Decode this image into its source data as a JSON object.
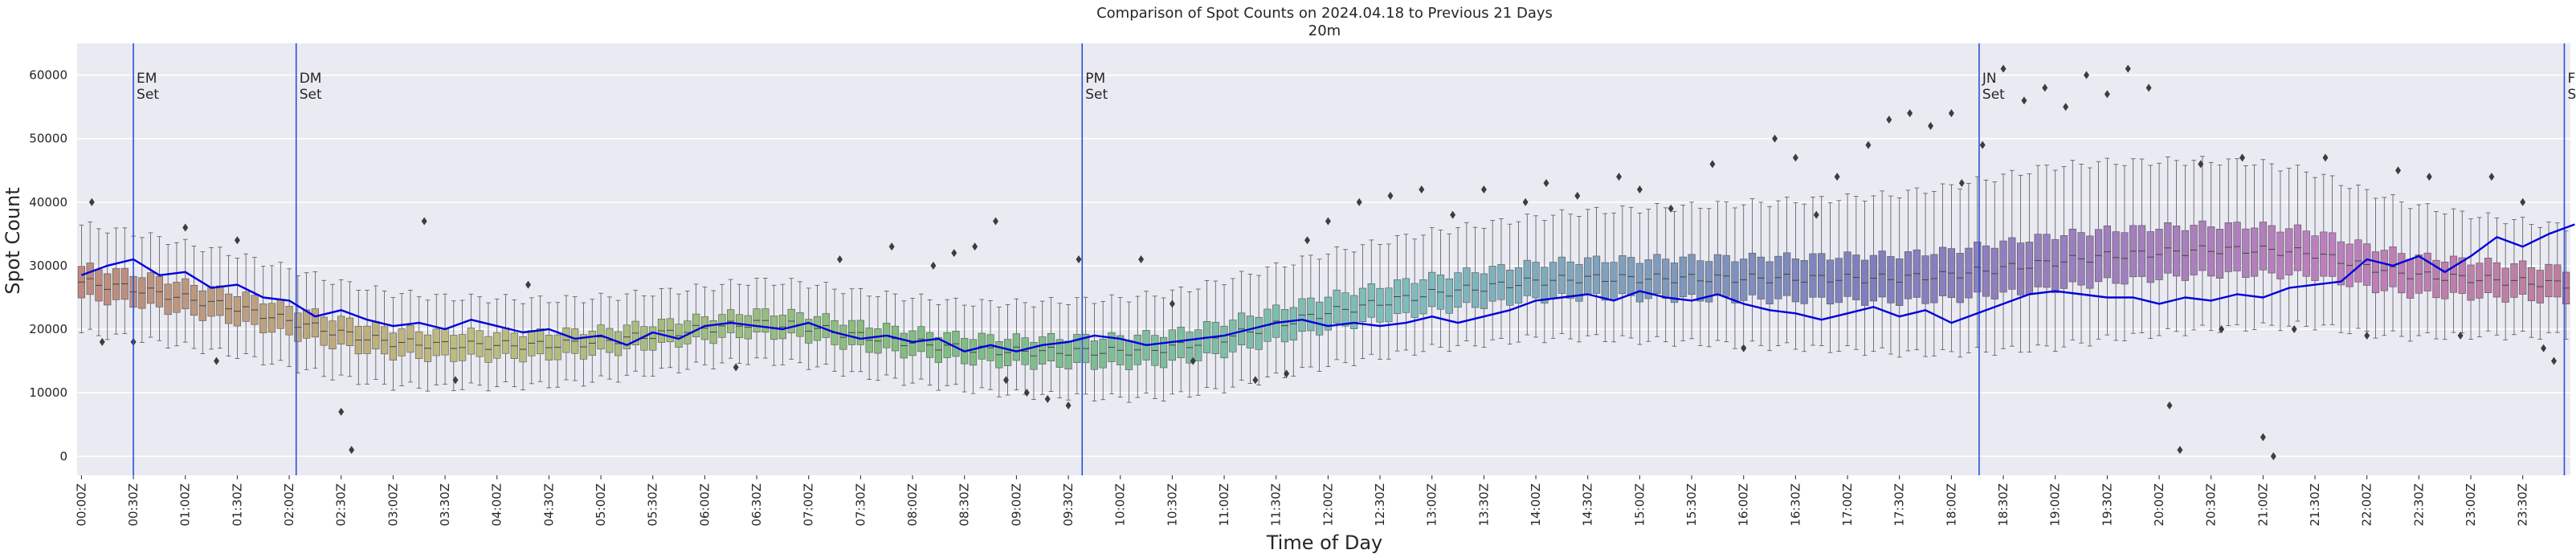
{
  "chart_data": {
    "type": "box",
    "title": "Comparison of Spot Counts on 2024.04.18 to Previous 21 Days",
    "subtitle": "20m",
    "xlabel": "Time of Day",
    "ylabel": "Spot Count",
    "ylim": [
      -3000,
      65000
    ],
    "yticks": [
      0,
      10000,
      20000,
      30000,
      40000,
      50000,
      60000
    ],
    "grid": true,
    "categories_per_tick": 6,
    "x_tick_labels": [
      "00:00Z",
      "00:30Z",
      "01:00Z",
      "01:30Z",
      "02:00Z",
      "02:30Z",
      "03:00Z",
      "03:30Z",
      "04:00Z",
      "04:30Z",
      "05:00Z",
      "05:30Z",
      "06:00Z",
      "06:30Z",
      "07:00Z",
      "07:30Z",
      "08:00Z",
      "08:30Z",
      "09:00Z",
      "09:30Z",
      "10:00Z",
      "10:30Z",
      "11:00Z",
      "11:30Z",
      "12:00Z",
      "12:30Z",
      "13:00Z",
      "13:30Z",
      "14:00Z",
      "14:30Z",
      "15:00Z",
      "15:30Z",
      "16:00Z",
      "16:30Z",
      "17:00Z",
      "17:30Z",
      "18:00Z",
      "18:30Z",
      "19:00Z",
      "19:30Z",
      "20:00Z",
      "20:30Z",
      "21:00Z",
      "21:30Z",
      "22:00Z",
      "22:30Z",
      "23:00Z",
      "23:30Z"
    ],
    "median_profile": [
      [
        0.0,
        27500
      ],
      [
        0.5,
        26500
      ],
      [
        1.0,
        25000
      ],
      [
        1.5,
        23500
      ],
      [
        2.0,
        21500
      ],
      [
        2.5,
        19500
      ],
      [
        3.0,
        18000
      ],
      [
        3.5,
        17500
      ],
      [
        4.0,
        17500
      ],
      [
        4.5,
        17500
      ],
      [
        5.0,
        18000
      ],
      [
        5.5,
        19000
      ],
      [
        6.0,
        20000
      ],
      [
        6.5,
        21000
      ],
      [
        7.0,
        20500
      ],
      [
        7.5,
        19000
      ],
      [
        8.0,
        18000
      ],
      [
        8.5,
        17000
      ],
      [
        9.0,
        16500
      ],
      [
        9.5,
        16500
      ],
      [
        10.0,
        16500
      ],
      [
        10.5,
        17000
      ],
      [
        11.0,
        18500
      ],
      [
        11.5,
        20500
      ],
      [
        12.0,
        22500
      ],
      [
        12.5,
        24000
      ],
      [
        13.0,
        25500
      ],
      [
        13.5,
        26500
      ],
      [
        14.0,
        27500
      ],
      [
        14.5,
        28000
      ],
      [
        15.0,
        28000
      ],
      [
        15.5,
        28000
      ],
      [
        16.0,
        28000
      ],
      [
        16.5,
        28000
      ],
      [
        17.0,
        28000
      ],
      [
        17.5,
        28000
      ],
      [
        18.0,
        28500
      ],
      [
        18.5,
        29500
      ],
      [
        19.0,
        30500
      ],
      [
        19.5,
        31500
      ],
      [
        20.0,
        32000
      ],
      [
        20.5,
        32500
      ],
      [
        21.0,
        32500
      ],
      [
        21.5,
        32000
      ],
      [
        22.0,
        30000
      ],
      [
        22.5,
        28500
      ],
      [
        23.0,
        28000
      ],
      [
        23.5,
        27500
      ],
      [
        24.0,
        27000
      ]
    ],
    "iqr_half_profile": [
      [
        0,
        2500
      ],
      [
        6,
        1800
      ],
      [
        8.5,
        2000
      ],
      [
        11,
        2500
      ],
      [
        14,
        2800
      ],
      [
        17,
        3500
      ],
      [
        19,
        4200
      ],
      [
        21,
        3800
      ],
      [
        23,
        2800
      ],
      [
        24,
        2500
      ]
    ],
    "series": [
      {
        "name": "2024.04.18",
        "color": "#0000dd",
        "points": [
          [
            0.0,
            28500
          ],
          [
            0.25,
            30000
          ],
          [
            0.5,
            31000
          ],
          [
            0.75,
            28500
          ],
          [
            1.0,
            29000
          ],
          [
            1.25,
            26500
          ],
          [
            1.5,
            27000
          ],
          [
            1.75,
            25000
          ],
          [
            2.0,
            24500
          ],
          [
            2.25,
            22000
          ],
          [
            2.5,
            23000
          ],
          [
            2.75,
            21500
          ],
          [
            3.0,
            20500
          ],
          [
            3.25,
            21000
          ],
          [
            3.5,
            20000
          ],
          [
            3.75,
            21500
          ],
          [
            4.0,
            20500
          ],
          [
            4.25,
            19500
          ],
          [
            4.5,
            20000
          ],
          [
            4.75,
            18500
          ],
          [
            5.0,
            19000
          ],
          [
            5.25,
            17500
          ],
          [
            5.5,
            19500
          ],
          [
            5.75,
            18500
          ],
          [
            6.0,
            20500
          ],
          [
            6.25,
            21000
          ],
          [
            6.5,
            20500
          ],
          [
            6.75,
            20000
          ],
          [
            7.0,
            21000
          ],
          [
            7.25,
            19500
          ],
          [
            7.5,
            18500
          ],
          [
            7.75,
            19000
          ],
          [
            8.0,
            18000
          ],
          [
            8.25,
            18500
          ],
          [
            8.5,
            16500
          ],
          [
            8.75,
            17500
          ],
          [
            9.0,
            16500
          ],
          [
            9.25,
            17500
          ],
          [
            9.5,
            18000
          ],
          [
            9.75,
            19000
          ],
          [
            10.0,
            18500
          ],
          [
            10.25,
            17500
          ],
          [
            10.5,
            18000
          ],
          [
            10.75,
            18500
          ],
          [
            11.0,
            19000
          ],
          [
            11.25,
            20000
          ],
          [
            11.5,
            21000
          ],
          [
            11.75,
            21500
          ],
          [
            12.0,
            20500
          ],
          [
            12.25,
            21000
          ],
          [
            12.5,
            20500
          ],
          [
            12.75,
            21000
          ],
          [
            13.0,
            22000
          ],
          [
            13.25,
            21000
          ],
          [
            13.5,
            22000
          ],
          [
            13.75,
            23000
          ],
          [
            14.0,
            24500
          ],
          [
            14.25,
            25000
          ],
          [
            14.5,
            25500
          ],
          [
            14.75,
            24500
          ],
          [
            15.0,
            26000
          ],
          [
            15.25,
            25000
          ],
          [
            15.5,
            24500
          ],
          [
            15.75,
            25500
          ],
          [
            16.0,
            24000
          ],
          [
            16.25,
            23000
          ],
          [
            16.5,
            22500
          ],
          [
            16.75,
            21500
          ],
          [
            17.0,
            22500
          ],
          [
            17.25,
            23500
          ],
          [
            17.5,
            22000
          ],
          [
            17.75,
            23000
          ],
          [
            18.0,
            21000
          ],
          [
            18.25,
            22500
          ],
          [
            18.5,
            24000
          ],
          [
            18.75,
            25500
          ],
          [
            19.0,
            26000
          ],
          [
            19.25,
            25500
          ],
          [
            19.5,
            25000
          ],
          [
            19.75,
            25000
          ],
          [
            20.0,
            24000
          ],
          [
            20.25,
            25000
          ],
          [
            20.5,
            24500
          ],
          [
            20.75,
            25500
          ],
          [
            21.0,
            25000
          ],
          [
            21.25,
            26500
          ],
          [
            21.5,
            27000
          ],
          [
            21.75,
            27500
          ],
          [
            22.0,
            31000
          ],
          [
            22.25,
            30000
          ],
          [
            22.5,
            31500
          ],
          [
            22.75,
            29000
          ],
          [
            23.0,
            31500
          ],
          [
            23.25,
            34500
          ],
          [
            23.5,
            33000
          ],
          [
            23.75,
            35000
          ],
          [
            24.0,
            36500
          ]
        ]
      }
    ],
    "outliers": [
      [
        0.1,
        40000
      ],
      [
        0.2,
        18000
      ],
      [
        0.5,
        18000
      ],
      [
        1.0,
        36000
      ],
      [
        1.3,
        15000
      ],
      [
        1.5,
        34000
      ],
      [
        2.6,
        1000
      ],
      [
        2.5,
        7000
      ],
      [
        3.3,
        37000
      ],
      [
        3.6,
        12000
      ],
      [
        4.3,
        27000
      ],
      [
        6.3,
        14000
      ],
      [
        7.3,
        31000
      ],
      [
        7.8,
        33000
      ],
      [
        8.2,
        30000
      ],
      [
        8.4,
        32000
      ],
      [
        8.6,
        33000
      ],
      [
        8.8,
        37000
      ],
      [
        8.9,
        12000
      ],
      [
        9.1,
        10000
      ],
      [
        9.3,
        9000
      ],
      [
        9.5,
        8000
      ],
      [
        9.6,
        31000
      ],
      [
        10.2,
        31000
      ],
      [
        10.5,
        24000
      ],
      [
        10.7,
        15000
      ],
      [
        11.3,
        12000
      ],
      [
        11.6,
        13000
      ],
      [
        11.8,
        34000
      ],
      [
        12.0,
        37000
      ],
      [
        12.3,
        40000
      ],
      [
        12.6,
        41000
      ],
      [
        12.9,
        42000
      ],
      [
        13.2,
        38000
      ],
      [
        13.5,
        42000
      ],
      [
        13.9,
        40000
      ],
      [
        14.1,
        43000
      ],
      [
        14.4,
        41000
      ],
      [
        14.8,
        44000
      ],
      [
        15.0,
        42000
      ],
      [
        15.3,
        39000
      ],
      [
        15.7,
        46000
      ],
      [
        16.0,
        17000
      ],
      [
        16.3,
        50000
      ],
      [
        16.5,
        47000
      ],
      [
        16.7,
        38000
      ],
      [
        16.9,
        44000
      ],
      [
        17.2,
        49000
      ],
      [
        17.4,
        53000
      ],
      [
        17.6,
        54000
      ],
      [
        17.8,
        52000
      ],
      [
        18.0,
        54000
      ],
      [
        18.1,
        43000
      ],
      [
        18.3,
        49000
      ],
      [
        18.5,
        61000
      ],
      [
        18.7,
        56000
      ],
      [
        18.9,
        58000
      ],
      [
        19.1,
        55000
      ],
      [
        19.3,
        60000
      ],
      [
        19.5,
        57000
      ],
      [
        19.7,
        61000
      ],
      [
        19.9,
        58000
      ],
      [
        20.1,
        8000
      ],
      [
        20.2,
        1000
      ],
      [
        20.4,
        46000
      ],
      [
        20.6,
        20000
      ],
      [
        20.8,
        47000
      ],
      [
        21.0,
        3000
      ],
      [
        21.1,
        0
      ],
      [
        21.3,
        20000
      ],
      [
        21.6,
        47000
      ],
      [
        22.0,
        19000
      ],
      [
        22.3,
        45000
      ],
      [
        22.6,
        44000
      ],
      [
        22.9,
        19000
      ],
      [
        23.2,
        44000
      ],
      [
        23.5,
        40000
      ],
      [
        23.7,
        17000
      ],
      [
        23.8,
        15000
      ]
    ],
    "markers": [
      {
        "label": "EM\nSet",
        "x": 0.5
      },
      {
        "label": "DM\nSet",
        "x": 2.067
      },
      {
        "label": "PM\nSet",
        "x": 9.633
      },
      {
        "label": "JN\nSet",
        "x": 18.267
      },
      {
        "label": "FN\nSet",
        "x": 23.9
      }
    ]
  }
}
